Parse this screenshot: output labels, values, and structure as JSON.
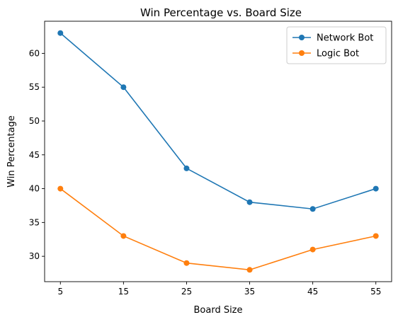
{
  "chart_data": {
    "type": "line",
    "title": "Win Percentage vs. Board Size",
    "xlabel": "Board Size",
    "ylabel": "Win Percentage",
    "x": [
      5,
      15,
      25,
      35,
      45,
      55
    ],
    "xticks": [
      5,
      15,
      25,
      35,
      45,
      55
    ],
    "yticks": [
      30,
      35,
      40,
      45,
      50,
      55,
      60
    ],
    "xlim": [
      2.5,
      57.5
    ],
    "ylim": [
      26.25,
      64.75
    ],
    "grid": false,
    "legend": "upper right",
    "series": [
      {
        "name": "Network Bot",
        "color": "#1f77b4",
        "values": [
          63,
          55,
          43,
          38,
          37,
          40
        ]
      },
      {
        "name": "Logic Bot",
        "color": "#ff7f0e",
        "values": [
          40,
          33,
          29,
          28,
          31,
          33
        ]
      }
    ]
  }
}
